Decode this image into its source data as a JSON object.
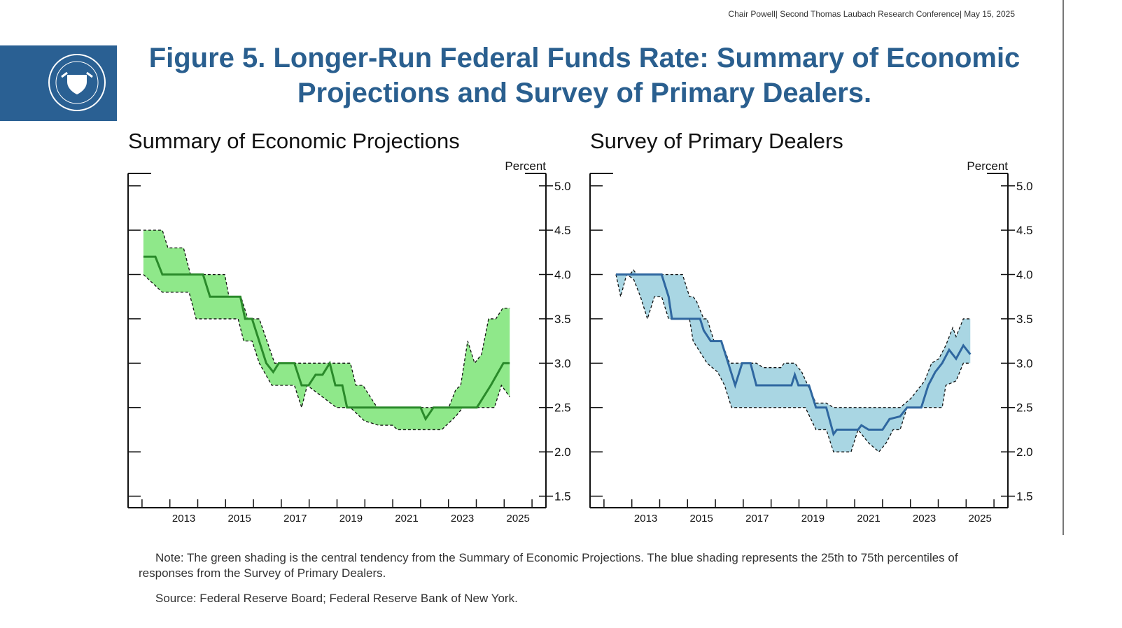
{
  "header": "Chair Powell| Second Thomas Laubach Research Conference| May 15, 2025",
  "title": "Figure 5. Longer-Run Federal Funds Rate: Summary of Economic Projections and Survey of Primary Dealers.",
  "note": "Note: The green shading is the central tendency from the Summary of Economic Projections. The blue shading represents the 25th to 75th percentiles of responses from the Survey of Primary Dealers.",
  "source": "Source: Federal Reserve Board; Federal Reserve Bank of New York.",
  "chart_data": [
    {
      "type": "band-line",
      "title": "Summary of Economic Projections",
      "y_axis_label": "Percent",
      "xlim": [
        2011.5,
        2026.5
      ],
      "ylim": [
        1.37,
        5.14
      ],
      "xticks": [
        {
          "value": 2013.5,
          "label": "2013"
        },
        {
          "value": 2015.5,
          "label": "2015"
        },
        {
          "value": 2017.5,
          "label": "2017"
        },
        {
          "value": 2019.5,
          "label": "2019"
        },
        {
          "value": 2021.5,
          "label": "2021"
        },
        {
          "value": 2023.5,
          "label": "2023"
        },
        {
          "value": 2025.5,
          "label": "2025"
        }
      ],
      "xminor_ticks": [
        2012,
        2013,
        2014,
        2015,
        2016,
        2017,
        2018,
        2019,
        2020,
        2021,
        2022,
        2023,
        2024,
        2025,
        2026
      ],
      "yticks": [
        1.5,
        {
          "value": 2,
          "label": "2.0"
        },
        2.5,
        {
          "value": 3,
          "label": "3.0"
        },
        3.5,
        {
          "value": 4,
          "label": "4.0"
        },
        4.5,
        {
          "value": 5,
          "label": "5.0"
        }
      ],
      "band_color": "#8fe88a",
      "line_color": "#2a8a2a",
      "upper": {
        "x": [
          2012.05,
          2012.73,
          2012.93,
          2013.49,
          2013.74,
          2014.97,
          2015.12,
          2015.55,
          2015.8,
          2016.21,
          2016.76,
          2019.48,
          2019.68,
          2019.93,
          2020.44,
          2023.01,
          2023.26,
          2023.44,
          2023.69,
          2023.94,
          2024.19,
          2024.44,
          2024.7,
          2024.95,
          2025.2
        ],
        "values": [
          4.5,
          4.5,
          4.3,
          4.3,
          4.0,
          4.0,
          3.75,
          3.75,
          3.5,
          3.5,
          3.0,
          3.0,
          2.75,
          2.75,
          2.5,
          2.5,
          2.7,
          2.75,
          3.25,
          3.0,
          3.1,
          3.5,
          3.5,
          3.62,
          3.62
        ]
      },
      "lower": {
        "x": [
          2012.05,
          2012.73,
          2013.69,
          2013.94,
          2015.45,
          2015.65,
          2015.95,
          2016.21,
          2016.66,
          2017.47,
          2017.73,
          2017.93,
          2018.98,
          2019.48,
          2019.98,
          2020.49,
          2020.99,
          2021.17,
          2022.76,
          2023.26,
          2023.52,
          2024.65,
          2024.9,
          2025.2
        ],
        "values": [
          4.0,
          3.8,
          3.8,
          3.5,
          3.5,
          3.25,
          3.25,
          3.0,
          2.75,
          2.75,
          2.5,
          2.75,
          2.5,
          2.5,
          2.35,
          2.3,
          2.3,
          2.25,
          2.25,
          2.4,
          2.5,
          2.5,
          2.75,
          2.62
        ]
      },
      "median": {
        "x": [
          2012.05,
          2012.48,
          2012.73,
          2014.19,
          2014.44,
          2015.53,
          2015.7,
          2015.95,
          2016.46,
          2016.71,
          2016.91,
          2017.47,
          2017.73,
          2017.98,
          2018.23,
          2018.48,
          2018.74,
          2018.94,
          2019.19,
          2019.36,
          2022.0,
          2022.18,
          2022.46,
          2024.02,
          2024.52,
          2024.97,
          2025.2
        ],
        "values": [
          4.2,
          4.2,
          4.0,
          4.0,
          3.75,
          3.75,
          3.5,
          3.5,
          3.0,
          2.9,
          3.0,
          3.0,
          2.75,
          2.75,
          2.87,
          2.87,
          3.0,
          2.75,
          2.75,
          2.5,
          2.5,
          2.37,
          2.5,
          2.5,
          2.75,
          3.0,
          3.0
        ]
      }
    },
    {
      "type": "band-line",
      "title": "Survey of Primary Dealers",
      "y_axis_label": "Percent",
      "xlim": [
        2011.5,
        2026.5
      ],
      "ylim": [
        1.37,
        5.14
      ],
      "xticks": [
        {
          "value": 2013.5,
          "label": "2013"
        },
        {
          "value": 2015.5,
          "label": "2015"
        },
        {
          "value": 2017.5,
          "label": "2017"
        },
        {
          "value": 2019.5,
          "label": "2019"
        },
        {
          "value": 2021.5,
          "label": "2021"
        },
        {
          "value": 2023.5,
          "label": "2023"
        },
        {
          "value": 2025.5,
          "label": "2025"
        }
      ],
      "xminor_ticks": [
        2012,
        2013,
        2014,
        2015,
        2016,
        2017,
        2018,
        2019,
        2020,
        2021,
        2022,
        2023,
        2024,
        2025,
        2026
      ],
      "yticks": [
        1.5,
        {
          "value": 2,
          "label": "2.0"
        },
        2.5,
        {
          "value": 3,
          "label": "3.0"
        },
        3.5,
        {
          "value": 4,
          "label": "4.0"
        },
        4.5,
        {
          "value": 5,
          "label": "5.0"
        }
      ],
      "band_color": "#a9d6e3",
      "line_color": "#2f67a0",
      "upper": {
        "x": [
          2012.43,
          2012.93,
          2013.06,
          2013.18,
          2014.82,
          2015.07,
          2015.2,
          2015.32,
          2015.58,
          2015.7,
          2015.95,
          2016.21,
          2016.51,
          2016.71,
          2017.21,
          2017.47,
          2017.72,
          2018.35,
          2018.47,
          2018.85,
          2019.1,
          2019.61,
          2019.98,
          2020.24,
          2021.75,
          2022.13,
          2022.63,
          2023.01,
          2023.51,
          2023.76,
          2024.02,
          2024.27,
          2024.52,
          2024.64,
          2024.9,
          2025.15
        ],
        "values": [
          4.0,
          4.0,
          4.05,
          4.0,
          4.0,
          3.75,
          3.75,
          3.7,
          3.5,
          3.5,
          3.25,
          3.25,
          3.0,
          3.0,
          3.0,
          3.0,
          2.95,
          2.95,
          3.0,
          3.0,
          2.9,
          2.55,
          2.55,
          2.5,
          2.5,
          2.5,
          2.5,
          2.6,
          2.8,
          3.0,
          3.05,
          3.2,
          3.4,
          3.3,
          3.5,
          3.5
        ]
      },
      "lower": {
        "x": [
          2012.43,
          2012.6,
          2012.81,
          2013.06,
          2013.31,
          2013.56,
          2013.81,
          2014.07,
          2014.32,
          2015.07,
          2015.2,
          2015.7,
          2016.08,
          2016.33,
          2016.58,
          2017.09,
          2019.23,
          2019.61,
          2019.98,
          2020.24,
          2020.87,
          2021.12,
          2021.5,
          2021.87,
          2022.13,
          2022.38,
          2022.63,
          2022.88,
          2024.14,
          2024.27,
          2024.64,
          2024.9,
          2025.15
        ],
        "values": [
          4.0,
          3.75,
          4.0,
          3.95,
          3.75,
          3.5,
          3.75,
          3.75,
          3.5,
          3.5,
          3.25,
          3.0,
          2.9,
          2.75,
          2.5,
          2.5,
          2.5,
          2.25,
          2.25,
          2.0,
          2.0,
          2.25,
          2.1,
          2.0,
          2.1,
          2.25,
          2.25,
          2.5,
          2.5,
          2.75,
          2.8,
          3.0,
          3.0
        ]
      },
      "median": {
        "x": [
          2012.43,
          2014.07,
          2014.32,
          2014.44,
          2015.45,
          2015.58,
          2015.83,
          2016.21,
          2016.46,
          2016.71,
          2016.96,
          2017.26,
          2017.47,
          2018.73,
          2018.85,
          2018.98,
          2019.36,
          2019.61,
          2019.98,
          2020.24,
          2020.36,
          2021.12,
          2021.24,
          2021.5,
          2022.0,
          2022.25,
          2022.63,
          2022.88,
          2023.39,
          2023.64,
          2023.89,
          2024.14,
          2024.39,
          2024.64,
          2024.9,
          2025.15
        ],
        "values": [
          4.0,
          4.0,
          3.75,
          3.5,
          3.5,
          3.37,
          3.25,
          3.25,
          3.0,
          2.75,
          3.0,
          3.0,
          2.75,
          2.75,
          2.87,
          2.75,
          2.75,
          2.5,
          2.5,
          2.2,
          2.25,
          2.25,
          2.3,
          2.25,
          2.25,
          2.37,
          2.4,
          2.5,
          2.5,
          2.75,
          2.9,
          3.0,
          3.15,
          3.05,
          3.2,
          3.1
        ]
      }
    }
  ]
}
